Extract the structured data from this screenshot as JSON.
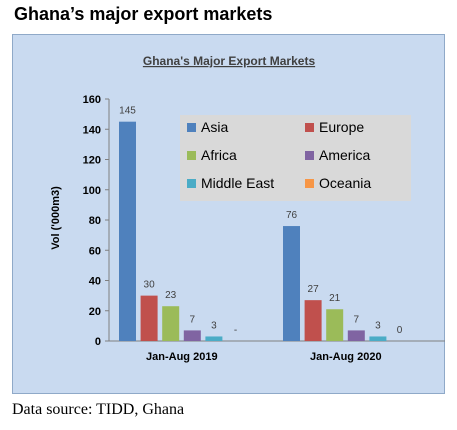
{
  "page": {
    "heading": "Ghana’s major export markets",
    "source": "Data source: TIDD, Ghana"
  },
  "chart_data": {
    "type": "bar",
    "title": "Ghana's Major Export  Markets",
    "xlabel": "",
    "ylabel": "Vol ('000m3)",
    "ylim": [
      0,
      160
    ],
    "yticks": [
      0,
      20,
      40,
      60,
      80,
      100,
      120,
      140,
      160
    ],
    "grid": false,
    "legend_position": "top-right",
    "categories": [
      "Jan-Aug 2019",
      "Jan-Aug 2020"
    ],
    "series": [
      {
        "name": "Asia",
        "color": "#4f81bd",
        "values": [
          145,
          76
        ],
        "labels": [
          "145",
          "76"
        ]
      },
      {
        "name": "Europe",
        "color": "#c0504d",
        "values": [
          30,
          27
        ],
        "labels": [
          "30",
          "27"
        ]
      },
      {
        "name": "Africa",
        "color": "#9bbb59",
        "values": [
          23,
          21
        ],
        "labels": [
          "23",
          "21"
        ]
      },
      {
        "name": "America",
        "color": "#8064a2",
        "values": [
          7,
          7
        ],
        "labels": [
          "7",
          "7"
        ]
      },
      {
        "name": "Middle East",
        "color": "#4bacc6",
        "values": [
          3,
          3
        ],
        "labels": [
          "3",
          "3"
        ]
      },
      {
        "name": "Oceania",
        "color": "#f79646",
        "values": [
          null,
          0
        ],
        "labels": [
          "-",
          "0"
        ]
      }
    ]
  }
}
